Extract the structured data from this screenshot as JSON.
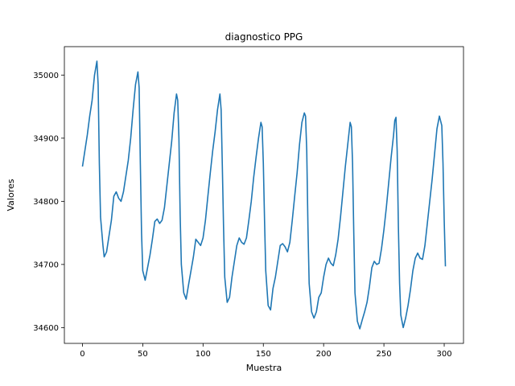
{
  "chart_data": {
    "type": "line",
    "title": "diagnostico PPG",
    "xlabel": "Muestra",
    "ylabel": "Valores",
    "xlim": [
      -15,
      316
    ],
    "ylim": [
      34575,
      35045
    ],
    "xticks": [
      0,
      50,
      100,
      150,
      200,
      250,
      300
    ],
    "yticks": [
      34600,
      34700,
      34800,
      34900,
      35000
    ],
    "grid": false,
    "line_color": "#1f77b4",
    "series": [
      {
        "points": [
          [
            0,
            34855
          ],
          [
            2,
            34880
          ],
          [
            4,
            34905
          ],
          [
            6,
            34935
          ],
          [
            8,
            34960
          ],
          [
            10,
            35000
          ],
          [
            12,
            35022
          ],
          [
            13,
            34985
          ],
          [
            14,
            34860
          ],
          [
            15,
            34775
          ],
          [
            17,
            34730
          ],
          [
            18,
            34712
          ],
          [
            20,
            34720
          ],
          [
            22,
            34745
          ],
          [
            24,
            34770
          ],
          [
            26,
            34808
          ],
          [
            28,
            34815
          ],
          [
            30,
            34805
          ],
          [
            32,
            34800
          ],
          [
            34,
            34815
          ],
          [
            36,
            34840
          ],
          [
            38,
            34865
          ],
          [
            40,
            34900
          ],
          [
            42,
            34945
          ],
          [
            44,
            34985
          ],
          [
            46,
            35005
          ],
          [
            47,
            34980
          ],
          [
            48,
            34860
          ],
          [
            49,
            34750
          ],
          [
            50,
            34690
          ],
          [
            52,
            34675
          ],
          [
            54,
            34695
          ],
          [
            56,
            34715
          ],
          [
            58,
            34740
          ],
          [
            60,
            34768
          ],
          [
            62,
            34772
          ],
          [
            64,
            34765
          ],
          [
            66,
            34770
          ],
          [
            68,
            34790
          ],
          [
            70,
            34825
          ],
          [
            72,
            34860
          ],
          [
            74,
            34895
          ],
          [
            76,
            34940
          ],
          [
            78,
            34970
          ],
          [
            79,
            34960
          ],
          [
            80,
            34900
          ],
          [
            81,
            34780
          ],
          [
            82,
            34700
          ],
          [
            84,
            34655
          ],
          [
            86,
            34645
          ],
          [
            88,
            34668
          ],
          [
            90,
            34690
          ],
          [
            92,
            34712
          ],
          [
            94,
            34740
          ],
          [
            96,
            34735
          ],
          [
            98,
            34730
          ],
          [
            100,
            34742
          ],
          [
            102,
            34770
          ],
          [
            104,
            34808
          ],
          [
            106,
            34845
          ],
          [
            108,
            34880
          ],
          [
            110,
            34910
          ],
          [
            112,
            34945
          ],
          [
            114,
            34970
          ],
          [
            115,
            34945
          ],
          [
            116,
            34855
          ],
          [
            117,
            34760
          ],
          [
            118,
            34680
          ],
          [
            120,
            34640
          ],
          [
            122,
            34648
          ],
          [
            124,
            34680
          ],
          [
            126,
            34705
          ],
          [
            128,
            34730
          ],
          [
            130,
            34742
          ],
          [
            132,
            34735
          ],
          [
            134,
            34732
          ],
          [
            136,
            34742
          ],
          [
            138,
            34770
          ],
          [
            140,
            34800
          ],
          [
            142,
            34838
          ],
          [
            144,
            34870
          ],
          [
            146,
            34900
          ],
          [
            148,
            34925
          ],
          [
            149,
            34918
          ],
          [
            150,
            34860
          ],
          [
            151,
            34770
          ],
          [
            152,
            34690
          ],
          [
            154,
            34635
          ],
          [
            156,
            34628
          ],
          [
            158,
            34662
          ],
          [
            160,
            34680
          ],
          [
            162,
            34705
          ],
          [
            164,
            34730
          ],
          [
            166,
            34733
          ],
          [
            168,
            34728
          ],
          [
            170,
            34720
          ],
          [
            172,
            34735
          ],
          [
            174,
            34770
          ],
          [
            176,
            34808
          ],
          [
            178,
            34845
          ],
          [
            180,
            34890
          ],
          [
            182,
            34925
          ],
          [
            184,
            34940
          ],
          [
            185,
            34935
          ],
          [
            186,
            34880
          ],
          [
            187,
            34760
          ],
          [
            188,
            34670
          ],
          [
            190,
            34625
          ],
          [
            192,
            34615
          ],
          [
            194,
            34625
          ],
          [
            196,
            34648
          ],
          [
            198,
            34655
          ],
          [
            200,
            34680
          ],
          [
            202,
            34700
          ],
          [
            204,
            34710
          ],
          [
            206,
            34702
          ],
          [
            208,
            34698
          ],
          [
            210,
            34715
          ],
          [
            212,
            34740
          ],
          [
            214,
            34775
          ],
          [
            216,
            34815
          ],
          [
            218,
            34855
          ],
          [
            220,
            34890
          ],
          [
            222,
            34925
          ],
          [
            223,
            34918
          ],
          [
            224,
            34860
          ],
          [
            225,
            34750
          ],
          [
            226,
            34655
          ],
          [
            228,
            34610
          ],
          [
            230,
            34598
          ],
          [
            232,
            34612
          ],
          [
            234,
            34625
          ],
          [
            236,
            34640
          ],
          [
            238,
            34665
          ],
          [
            240,
            34695
          ],
          [
            242,
            34705
          ],
          [
            244,
            34700
          ],
          [
            246,
            34702
          ],
          [
            248,
            34725
          ],
          [
            250,
            34755
          ],
          [
            252,
            34790
          ],
          [
            254,
            34830
          ],
          [
            256,
            34870
          ],
          [
            258,
            34905
          ],
          [
            259,
            34928
          ],
          [
            260,
            34933
          ],
          [
            261,
            34880
          ],
          [
            262,
            34760
          ],
          [
            263,
            34670
          ],
          [
            264,
            34620
          ],
          [
            266,
            34600
          ],
          [
            268,
            34615
          ],
          [
            270,
            34635
          ],
          [
            272,
            34660
          ],
          [
            274,
            34690
          ],
          [
            276,
            34710
          ],
          [
            278,
            34718
          ],
          [
            280,
            34710
          ],
          [
            282,
            34708
          ],
          [
            284,
            34730
          ],
          [
            286,
            34765
          ],
          [
            288,
            34800
          ],
          [
            290,
            34835
          ],
          [
            292,
            34875
          ],
          [
            294,
            34915
          ],
          [
            296,
            34935
          ],
          [
            298,
            34920
          ],
          [
            299,
            34860
          ],
          [
            300,
            34770
          ],
          [
            301,
            34697
          ]
        ]
      }
    ]
  }
}
